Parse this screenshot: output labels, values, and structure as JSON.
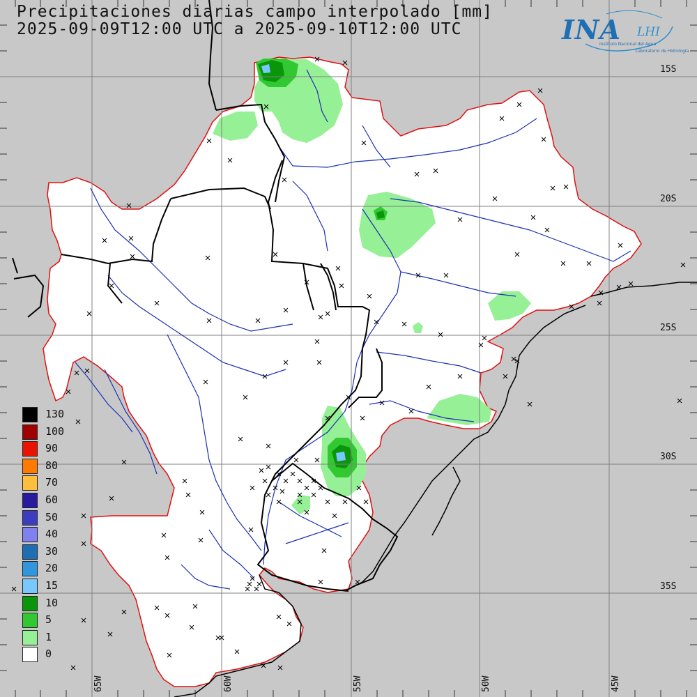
{
  "header": {
    "line1": "Precipitaciones diarias campo interpolado [mm]",
    "line2": "2025-09-09T12:00 UTC a 2025-09-10T12:00 UTC"
  },
  "logo": {
    "main": "INA",
    "secondary": "LHI",
    "subtitle1": "Instituto Nacional del Agua",
    "subtitle2": "Laboratorio de Hidrología"
  },
  "grid": {
    "lat_labels": [
      "15S",
      "20S",
      "25S",
      "30S",
      "35S"
    ],
    "lon_labels": [
      "65W",
      "60W",
      "55W",
      "50W",
      "45W"
    ]
  },
  "legend": {
    "items": [
      {
        "label": "130",
        "color": "#000000"
      },
      {
        "label": "100",
        "color": "#a00000"
      },
      {
        "label": "90",
        "color": "#e81400"
      },
      {
        "label": "80",
        "color": "#ff7a00"
      },
      {
        "label": "70",
        "color": "#ffbe3c"
      },
      {
        "label": "60",
        "color": "#2a1aa0"
      },
      {
        "label": "50",
        "color": "#3c3cc0"
      },
      {
        "label": "40",
        "color": "#8080f0"
      },
      {
        "label": "30",
        "color": "#1e6eb4"
      },
      {
        "label": "20",
        "color": "#3296dc"
      },
      {
        "label": "15",
        "color": "#78c8ff"
      },
      {
        "label": "10",
        "color": "#0a960a"
      },
      {
        "label": "5",
        "color": "#32c832"
      },
      {
        "label": "1",
        "color": "#96f096"
      },
      {
        "label": "0",
        "color": "#ffffff"
      }
    ]
  },
  "colors": {
    "background": "#c8c8c8",
    "basin_fill": "#ffffff",
    "basin_outline": "#e01010",
    "rivers": "#1a2fb4",
    "borders": "#000000",
    "grid": "#808080"
  }
}
